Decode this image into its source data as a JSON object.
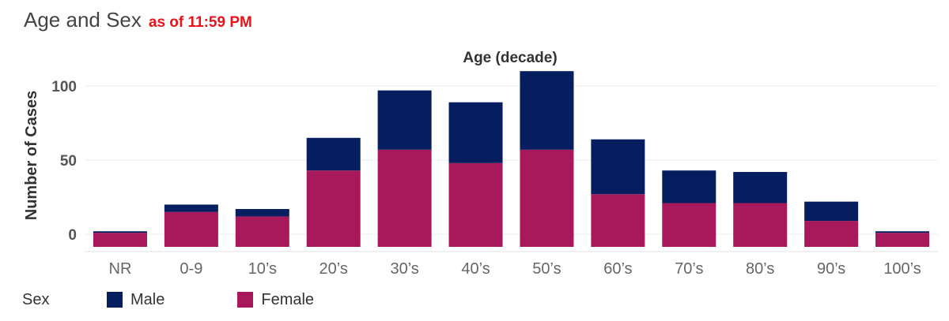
{
  "chart_data": {
    "type": "bar",
    "stacked": true,
    "title": "Age and Sex",
    "subtitle": "as of 11:59 PM",
    "xlabel": "Age (decade)",
    "ylabel": "Number of Cases",
    "categories": [
      "NR",
      "0-9",
      "10’s",
      "20’s",
      "30’s",
      "40’s",
      "50’s",
      "60’s",
      "70’s",
      "80’s",
      "90’s",
      "100’s"
    ],
    "series": [
      {
        "name": "Female",
        "color": "#a8195b",
        "values": [
          1,
          15,
          12,
          43,
          57,
          48,
          57,
          27,
          21,
          21,
          9,
          1
        ]
      },
      {
        "name": "Male",
        "color": "#061e5f",
        "values": [
          1,
          5,
          5,
          22,
          40,
          41,
          53,
          37,
          22,
          21,
          13,
          1
        ]
      }
    ],
    "yticks": [
      0,
      50,
      100
    ],
    "ylim": [
      -5,
      115
    ],
    "grid": true,
    "legend": {
      "title": "Sex",
      "position": "bottom-left",
      "items": [
        "Male",
        "Female"
      ]
    }
  }
}
